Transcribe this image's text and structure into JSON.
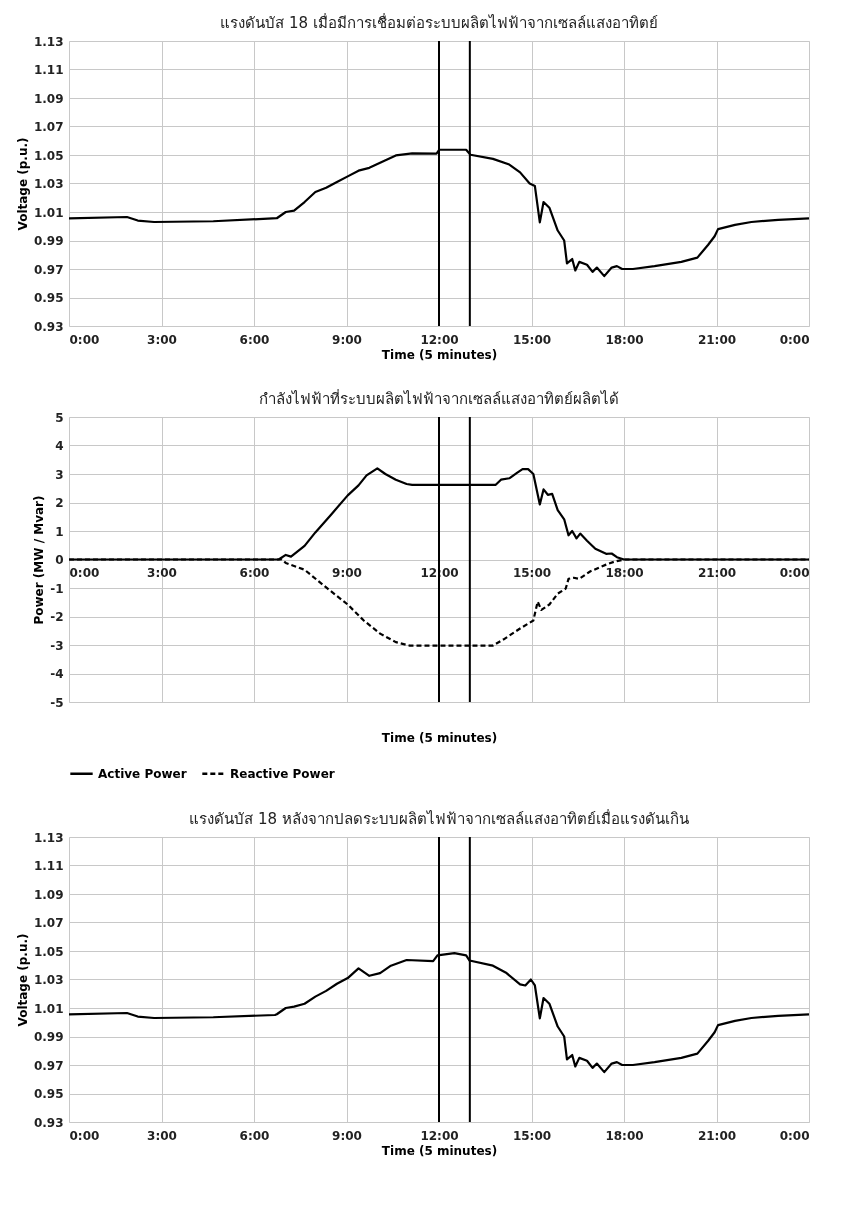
{
  "chart_data": [
    {
      "type": "line",
      "title": "แรงดันบัส 18 เมื่อมีการเชื่อมต่อระบบผลิตไฟฟ้าจากเซลล์แสงอาทิตย์",
      "xlabel": "Time (5 minutes)",
      "ylabel": "Voltage (p.u.)",
      "xlim": [
        0,
        24
      ],
      "xticks": [
        {
          "value": 0,
          "label": "0:00"
        },
        {
          "value": 3,
          "label": "3:00"
        },
        {
          "value": 6,
          "label": "6:00"
        },
        {
          "value": 9,
          "label": "9:00"
        },
        {
          "value": 12,
          "label": "12:00"
        },
        {
          "value": 15,
          "label": "15:00"
        },
        {
          "value": 18,
          "label": "18:00"
        },
        {
          "value": 21,
          "label": "21:00"
        },
        {
          "value": 24,
          "label": "0:00"
        }
      ],
      "ylim": [
        0.93,
        1.13
      ],
      "yticks": [
        0.93,
        0.95,
        0.97,
        0.99,
        1.01,
        1.03,
        1.05,
        1.07,
        1.09,
        1.11,
        1.13
      ],
      "grid": true,
      "legend": false,
      "series": [
        {
          "color": "#000000",
          "line_style": "solid",
          "x": [
            0,
            1.88,
            2.23,
            2.76,
            4.68,
            6.6,
            6.74,
            7.03,
            7.3,
            7.64,
            7.99,
            8.34,
            8.69,
            9.04,
            9.39,
            9.74,
            10.09,
            10.6,
            11.13,
            11.92,
            12.01,
            12.88,
            13.02,
            13.75,
            14.28,
            14.63,
            14.94,
            15.11,
            15.27,
            15.39,
            15.58,
            15.85,
            16.06,
            16.15,
            16.32,
            16.42,
            16.55,
            16.8,
            16.98,
            17.12,
            17.36,
            17.6,
            17.77,
            17.94,
            18.29,
            18.99,
            19.86,
            20.38,
            20.73,
            20.94,
            21.05,
            21.6,
            22.13,
            23,
            24
          ],
          "values": [
            1.0055,
            1.0065,
            1.004,
            1.003,
            1.0035,
            1.0055,
            1.0056,
            1.01,
            1.011,
            1.017,
            1.024,
            1.027,
            1.031,
            1.035,
            1.039,
            1.041,
            1.0445,
            1.0497,
            1.0512,
            1.051,
            1.0537,
            1.0537,
            1.0502,
            1.0473,
            1.0433,
            1.0378,
            1.03,
            1.0282,
            1.0027,
            1.017,
            1.013,
            0.997,
            0.99,
            0.974,
            0.977,
            0.969,
            0.975,
            0.973,
            0.968,
            0.971,
            0.965,
            0.971,
            0.972,
            0.97,
            0.97,
            0.972,
            0.975,
            0.978,
            0.987,
            0.993,
            0.998,
            1.001,
            1.003,
            1.0045,
            1.0055
          ]
        }
      ],
      "ref_lines": [
        {
          "axis": "x",
          "value": 12,
          "color": "#000000"
        },
        {
          "axis": "x",
          "value": 13,
          "color": "#000000"
        }
      ]
    },
    {
      "type": "line",
      "title": "กำลังไฟฟ้าที่ระบบผลิตไฟฟ้าจากเซลล์แสงอาทิตย์ผลิตได้",
      "xlabel": "Time (5 minutes)",
      "ylabel": "Power (MW / Mvar)",
      "xlim": [
        0,
        24
      ],
      "xticks": [
        {
          "value": 0,
          "label": "0:00"
        },
        {
          "value": 3,
          "label": "3:00"
        },
        {
          "value": 6,
          "label": "6:00"
        },
        {
          "value": 9,
          "label": "9:00"
        },
        {
          "value": 12,
          "label": "12:00"
        },
        {
          "value": 15,
          "label": "15:00"
        },
        {
          "value": 18,
          "label": "18:00"
        },
        {
          "value": 21,
          "label": "21:00"
        },
        {
          "value": 24,
          "label": "0:00"
        }
      ],
      "ylim": [
        -5,
        5
      ],
      "yticks": [
        -5,
        -4,
        -3,
        -2,
        -1,
        0,
        1,
        2,
        3,
        4,
        5
      ],
      "grid": true,
      "legend": "bottom",
      "series": [
        {
          "name": "Active Power",
          "color": "#000000",
          "line_style": "solid",
          "x": [
            0,
            6.8,
            7.03,
            7.2,
            7.64,
            7.99,
            8.52,
            9.04,
            9.39,
            9.65,
            10.0,
            10.26,
            10.6,
            10.95,
            11.13,
            13.84,
            14.01,
            14.28,
            14.54,
            14.71,
            14.89,
            15.06,
            15.27,
            15.39,
            15.53,
            15.67,
            15.85,
            16.06,
            16.2,
            16.32,
            16.46,
            16.58,
            16.8,
            17.07,
            17.42,
            17.6,
            17.77,
            18.0,
            24
          ],
          "values": [
            0,
            0,
            0.16,
            0.1,
            0.48,
            0.95,
            1.6,
            2.25,
            2.6,
            2.95,
            3.2,
            3.0,
            2.8,
            2.65,
            2.62,
            2.62,
            2.8,
            2.85,
            3.05,
            3.17,
            3.17,
            3.0,
            1.93,
            2.46,
            2.27,
            2.3,
            1.73,
            1.41,
            0.85,
            1.0,
            0.74,
            0.91,
            0.66,
            0.38,
            0.2,
            0.21,
            0.08,
            0,
            0
          ]
        },
        {
          "name": "Reactive Power",
          "color": "#000000",
          "line_style": "dashed",
          "x": [
            0,
            6.9,
            7.03,
            7.64,
            8.34,
            9.04,
            9.56,
            10.09,
            10.6,
            11.05,
            13.75,
            14.1,
            14.63,
            15.06,
            15.2,
            15.32,
            15.58,
            15.85,
            16.11,
            16.2,
            16.37,
            16.55,
            16.9,
            17.42,
            17.68,
            18.0,
            24
          ],
          "values": [
            0,
            0,
            -0.12,
            -0.36,
            -0.98,
            -1.58,
            -2.14,
            -2.6,
            -2.9,
            -3.02,
            -3.02,
            -2.8,
            -2.42,
            -2.14,
            -1.48,
            -1.77,
            -1.58,
            -1.2,
            -1.02,
            -0.68,
            -0.64,
            -0.68,
            -0.42,
            -0.18,
            -0.08,
            0,
            0
          ]
        }
      ],
      "ref_lines": [
        {
          "axis": "x",
          "value": 12,
          "color": "#000000"
        },
        {
          "axis": "x",
          "value": 13,
          "color": "#000000"
        }
      ]
    },
    {
      "type": "line",
      "title": "แรงดันบัส 18 หลังจากปลดระบบผลิตไฟฟ้าจากเซลล์แสงอาทิตย์เมื่อแรงดันเกิน",
      "xlabel": "Time (5 minutes)",
      "ylabel": "Voltage (p.u.)",
      "xlim": [
        0,
        24
      ],
      "xticks": [
        {
          "value": 0,
          "label": "0:00"
        },
        {
          "value": 3,
          "label": "3:00"
        },
        {
          "value": 6,
          "label": "6:00"
        },
        {
          "value": 9,
          "label": "9:00"
        },
        {
          "value": 12,
          "label": "12:00"
        },
        {
          "value": 15,
          "label": "15:00"
        },
        {
          "value": 18,
          "label": "18:00"
        },
        {
          "value": 21,
          "label": "21:00"
        },
        {
          "value": 24,
          "label": "0:00"
        }
      ],
      "ylim": [
        0.93,
        1.13
      ],
      "yticks": [
        0.93,
        0.95,
        0.97,
        0.99,
        1.01,
        1.03,
        1.05,
        1.07,
        1.09,
        1.11,
        1.13
      ],
      "grid": true,
      "legend": false,
      "series": [
        {
          "color": "#000000",
          "line_style": "solid",
          "x": [
            0,
            1.88,
            2.23,
            2.76,
            4.68,
            6.68,
            6.74,
            7.03,
            7.3,
            7.64,
            7.99,
            8.34,
            8.69,
            9.04,
            9.39,
            9.74,
            10.09,
            10.44,
            10.95,
            11.81,
            11.95,
            12.5,
            12.88,
            12.99,
            13.75,
            14.19,
            14.63,
            14.8,
            14.98,
            15.11,
            15.27,
            15.39,
            15.58,
            15.85,
            16.06,
            16.15,
            16.32,
            16.42,
            16.55,
            16.8,
            16.98,
            17.12,
            17.36,
            17.6,
            17.77,
            17.94,
            18.29,
            18.99,
            19.86,
            20.38,
            20.73,
            20.94,
            21.05,
            21.6,
            22.13,
            23,
            24
          ],
          "values": [
            1.0055,
            1.0065,
            1.004,
            1.003,
            1.0035,
            1.0051,
            1.0056,
            1.01,
            1.011,
            1.013,
            1.018,
            1.022,
            1.027,
            1.031,
            1.0378,
            1.0326,
            1.0345,
            1.0397,
            1.0437,
            1.0429,
            1.0469,
            1.0485,
            1.0469,
            1.0433,
            1.0397,
            1.0345,
            1.0266,
            1.0258,
            1.03,
            1.0258,
            1.0027,
            1.017,
            1.013,
            0.997,
            0.99,
            0.974,
            0.977,
            0.969,
            0.975,
            0.973,
            0.968,
            0.971,
            0.965,
            0.971,
            0.972,
            0.97,
            0.97,
            0.972,
            0.975,
            0.978,
            0.987,
            0.993,
            0.998,
            1.001,
            1.003,
            1.0045,
            1.0055
          ]
        }
      ],
      "ref_lines": [
        {
          "axis": "x",
          "value": 12,
          "color": "#000000"
        },
        {
          "axis": "x",
          "value": 13,
          "color": "#000000"
        }
      ]
    }
  ]
}
